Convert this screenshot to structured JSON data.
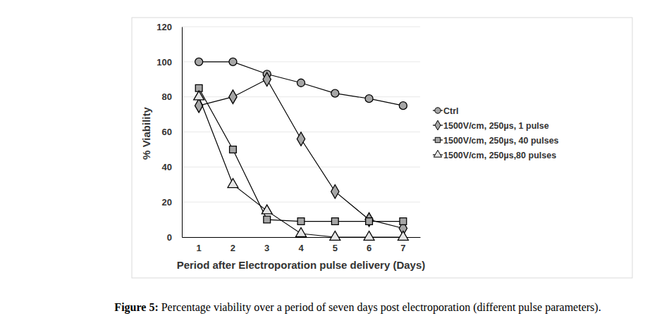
{
  "chart_data": {
    "type": "line",
    "x_label": "Period after Electroporation pulse delivery (Days)",
    "y_label": "% Viability",
    "caption": {
      "label": "Figure 5:",
      "text": "Percentage viability over a period of seven days post electroporation (different pulse parameters)."
    },
    "categories": [
      1,
      2,
      3,
      4,
      5,
      6,
      7
    ],
    "series": [
      {
        "name": "Ctrl",
        "color": "#a6a6a6",
        "marker": "circle",
        "values": [
          100,
          100,
          93,
          88,
          82,
          79,
          75
        ]
      },
      {
        "name": "1500V/cm, 250µs, 1 pulse",
        "color": "#a6a6a6",
        "marker": "diamond",
        "values": [
          75,
          80,
          90,
          56,
          26,
          10,
          5
        ]
      },
      {
        "name": "1500V/cm, 250µs, 40 pulses",
        "color": "#a6a6a6",
        "marker": "square",
        "values": [
          85,
          50,
          10,
          9,
          9,
          9,
          9
        ]
      },
      {
        "name": "1500V/cm, 250µs,80 pulses",
        "color": "#e6e6e6",
        "marker": "triangle",
        "values": [
          80,
          30,
          15,
          2,
          0,
          0,
          0
        ]
      }
    ],
    "ylim": [
      0,
      120
    ],
    "yticks": [
      0,
      20,
      40,
      60,
      80,
      100,
      120
    ],
    "grid": true,
    "legend": "right"
  }
}
